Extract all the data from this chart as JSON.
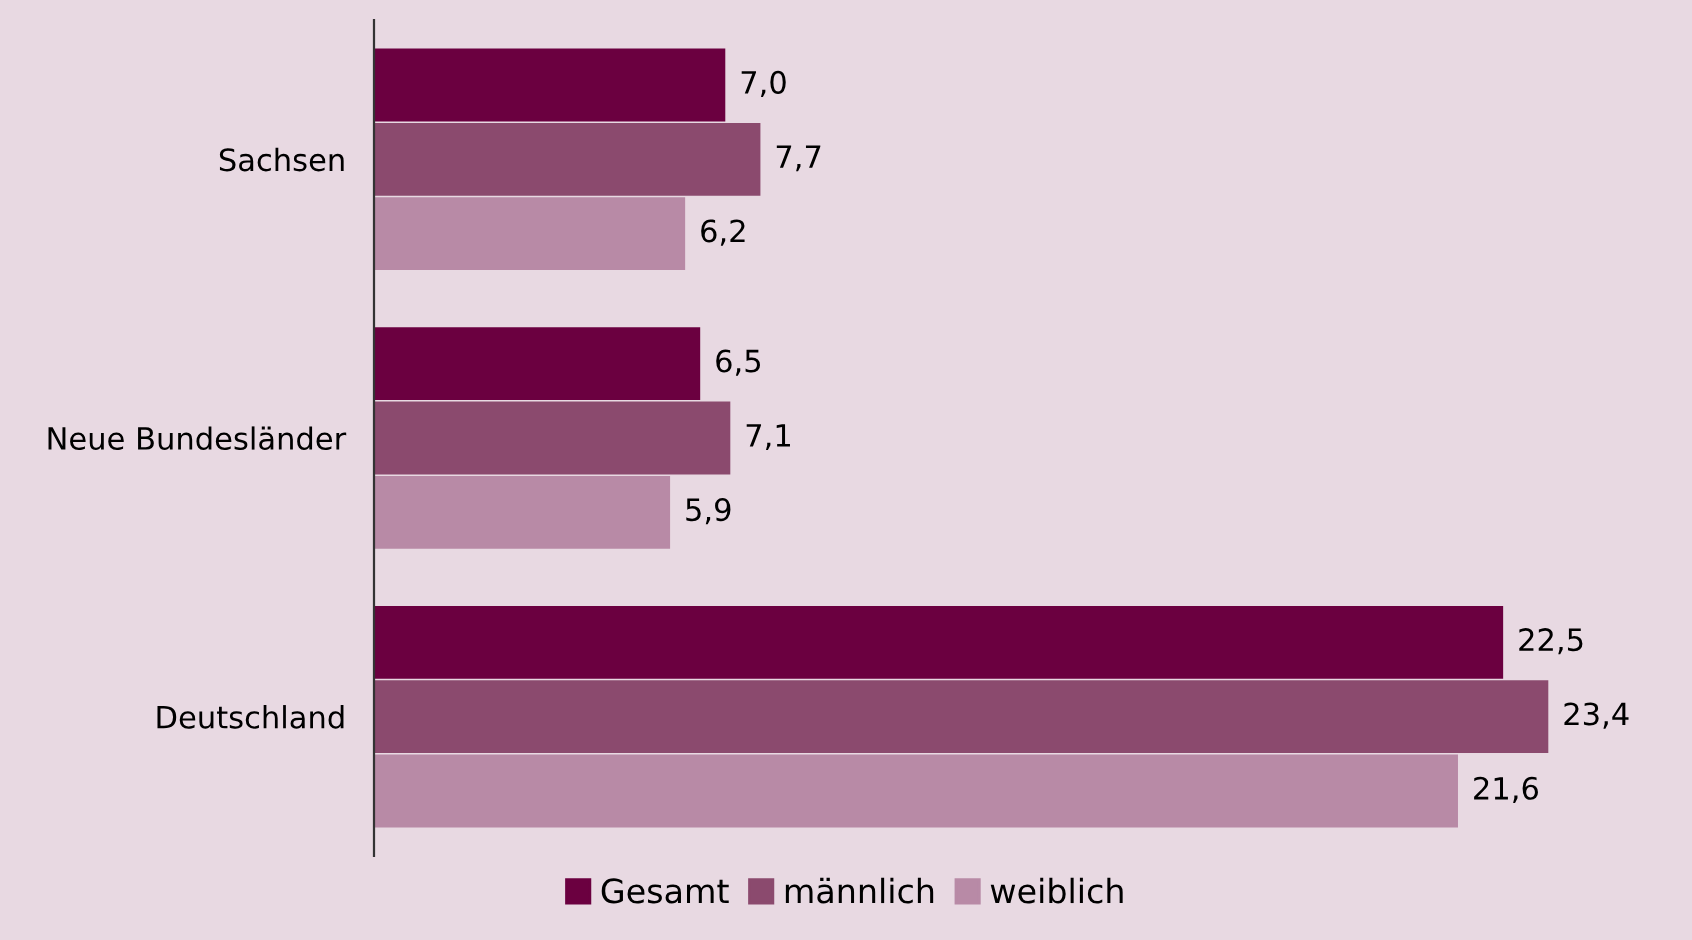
{
  "chart_data": {
    "type": "bar",
    "orientation": "horizontal",
    "categories": [
      "Sachsen",
      "Neue Bundesländer",
      "Deutschland"
    ],
    "series": [
      {
        "name": "Gesamt",
        "color": "#6b0040",
        "values": [
          7.0,
          6.5,
          22.5
        ],
        "value_labels": [
          "7,0",
          "6,5",
          "22,5"
        ]
      },
      {
        "name": "männlich",
        "color": "#8b4a6e",
        "values": [
          7.7,
          7.1,
          23.4
        ],
        "value_labels": [
          "7,7",
          "7,1",
          "23,4"
        ]
      },
      {
        "name": "weiblich",
        "color": "#b88aa6",
        "values": [
          6.2,
          5.9,
          21.6
        ],
        "value_labels": [
          "6,2",
          "5,9",
          "21,6"
        ]
      }
    ],
    "legend": "bottom",
    "tick_labels": "y",
    "grid": false
  }
}
